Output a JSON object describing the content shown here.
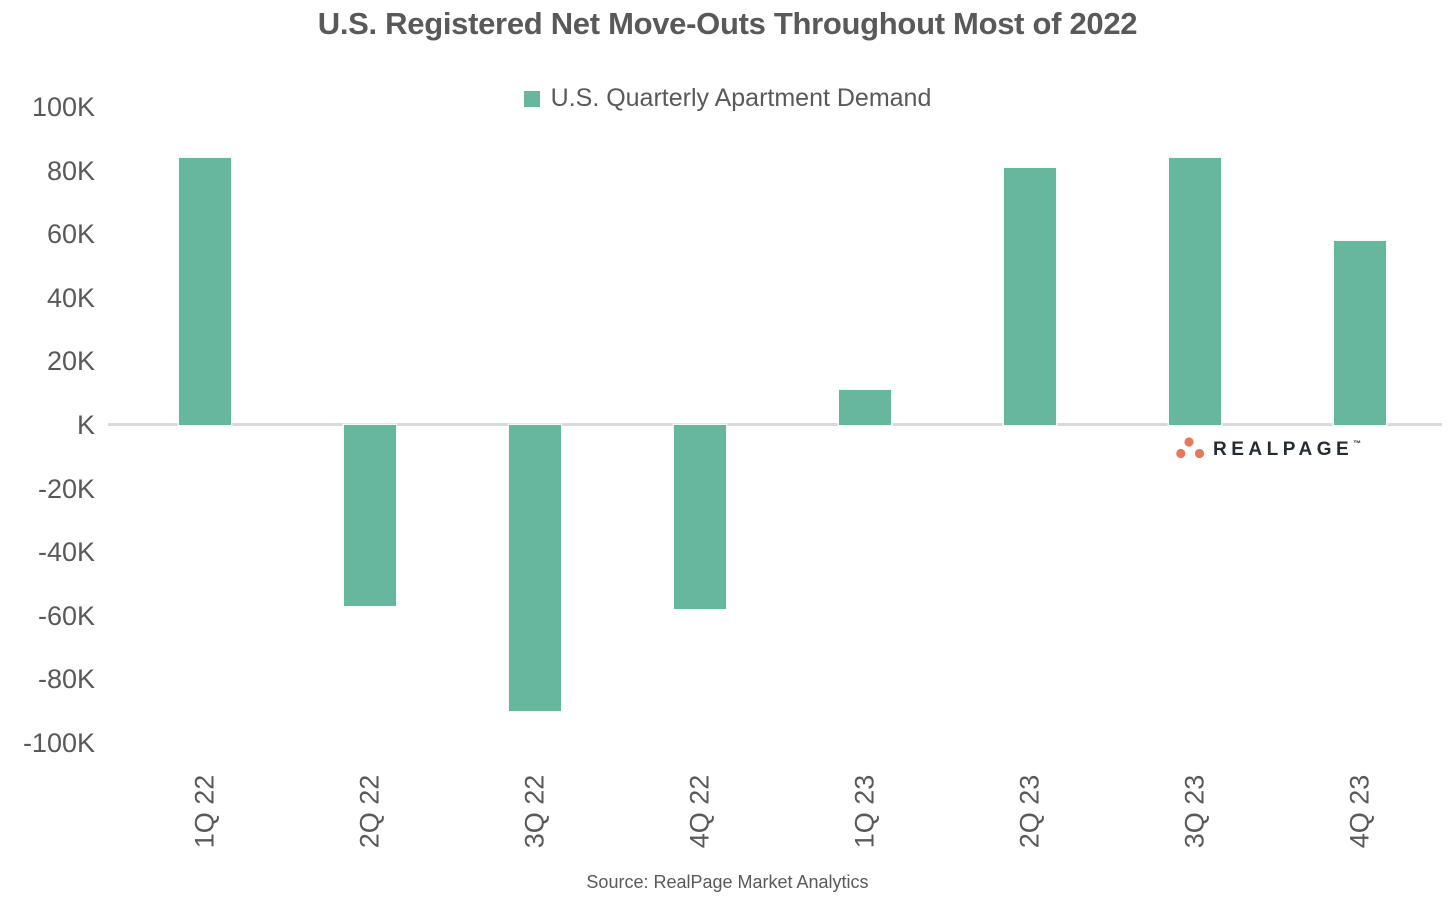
{
  "chart_data": {
    "type": "bar",
    "title": "U.S. Registered Net Move-Outs Throughout Most of 2022",
    "legend_label": "U.S. Quarterly Apartment Demand",
    "legend_position": "top-center",
    "categories": [
      "1Q 22",
      "2Q 22",
      "3Q 22",
      "4Q 22",
      "1Q 23",
      "2Q 23",
      "3Q 23",
      "4Q 23"
    ],
    "values_thousands": [
      84,
      -57,
      -90,
      -58,
      11,
      81,
      84,
      58
    ],
    "value_unit": "thousands of units",
    "y_ticks": [
      "100K",
      "80K",
      "60K",
      "40K",
      "20K",
      "K",
      "-20K",
      "-40K",
      "-60K",
      "-80K",
      "-100K"
    ],
    "ylim_thousands": [
      -100,
      100
    ],
    "grid": "zero-axis-line-only",
    "x_label_rotation_deg": -90
  },
  "footer": {
    "source": "Source: RealPage Market Analytics"
  },
  "branding": {
    "logo_text": "REALPAGE",
    "trademark": "™"
  },
  "colors": {
    "bar": "#66b79d",
    "axis_line": "#d9d9d9",
    "text": "#595959",
    "logo_dots": "#e8795a",
    "logo_text": "#262c33"
  }
}
